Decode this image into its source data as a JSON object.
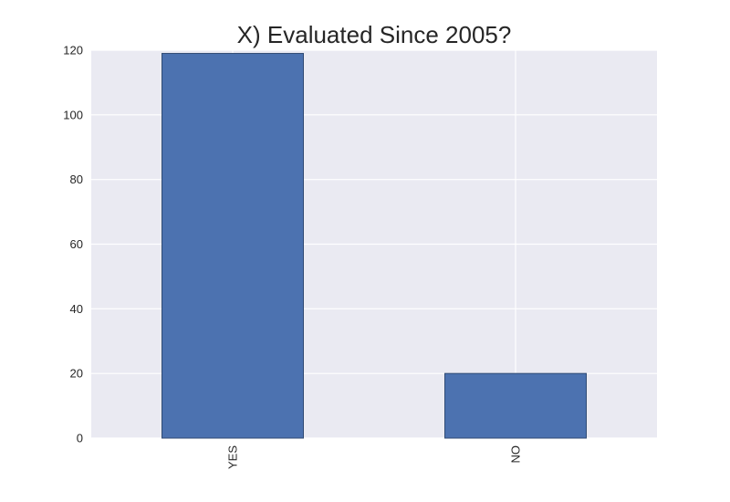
{
  "chart_data": {
    "type": "bar",
    "title": "X) Evaluated Since 2005?",
    "xlabel": "",
    "ylabel": "",
    "categories": [
      "YES",
      "NO"
    ],
    "values": [
      119,
      20
    ],
    "ylim": [
      0,
      120
    ],
    "yticks": [
      0,
      20,
      40,
      60,
      80,
      100,
      120
    ],
    "grid": true,
    "legend": "none",
    "colors": {
      "bar": "#4c72b0",
      "bar_edge": "#2f4a73",
      "plot_background": "#eaeaf2",
      "grid": "#ffffff",
      "text": "#262626"
    }
  }
}
